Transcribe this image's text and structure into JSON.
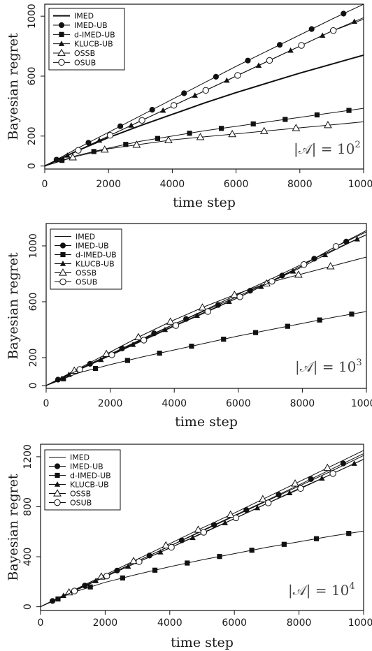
{
  "chart_data": [
    {
      "type": "line",
      "xlabel": "time step",
      "ylabel": "Bayesian regret",
      "xlim": [
        0,
        10000
      ],
      "ylim": [
        -20,
        1080
      ],
      "xticks": [
        "0",
        "2000",
        "4000",
        "6000",
        "8000",
        "10000"
      ],
      "yticks": [
        "0",
        "200",
        "600",
        "1000"
      ],
      "ytick_values": [
        0,
        200,
        600,
        1000
      ],
      "annotation": "|𝒜| = 10",
      "annotation_exp": "2",
      "legend_position": "top-left",
      "x": [
        0,
        1000,
        2000,
        3000,
        4000,
        5000,
        6000,
        7000,
        8000,
        9000,
        10000
      ],
      "series": [
        {
          "name": "IMED",
          "marker": "none",
          "lw": 2,
          "values": [
            0,
            100,
            190,
            270,
            345,
            420,
            490,
            555,
            620,
            680,
            740
          ]
        },
        {
          "name": "IMED-UB",
          "marker": "filled-circle",
          "lw": 1,
          "values": [
            0,
            115,
            225,
            335,
            445,
            555,
            665,
            770,
            875,
            980,
            1080
          ]
        },
        {
          "name": "d-IMED-UB",
          "marker": "filled-square",
          "lw": 1,
          "values": [
            0,
            70,
            120,
            165,
            200,
            235,
            265,
            295,
            325,
            355,
            385
          ]
        },
        {
          "name": "KLUCB-UB",
          "marker": "filled-triangle",
          "lw": 1,
          "values": [
            0,
            100,
            200,
            300,
            400,
            500,
            600,
            700,
            800,
            900,
            990
          ]
        },
        {
          "name": "OSSB",
          "marker": "open-triangle",
          "lw": 1,
          "values": [
            0,
            65,
            115,
            145,
            175,
            195,
            215,
            235,
            255,
            275,
            295
          ]
        },
        {
          "name": "OSUB",
          "marker": "open-circle",
          "lw": 1,
          "values": [
            0,
            100,
            200,
            300,
            400,
            500,
            600,
            700,
            800,
            900,
            980
          ]
        }
      ]
    },
    {
      "type": "line",
      "xlabel": "time step",
      "ylabel": "Bayesian regret",
      "xlim": [
        0,
        10000
      ],
      "ylim": [
        -20,
        1160
      ],
      "xticks": [
        "0",
        "2000",
        "4000",
        "6000",
        "8000",
        "10000"
      ],
      "yticks": [
        "0",
        "200",
        "600",
        "1000"
      ],
      "ytick_values": [
        0,
        200,
        600,
        1000
      ],
      "annotation": "|𝒜| = 10",
      "annotation_exp": "3",
      "legend_position": "top-left",
      "x": [
        0,
        1000,
        2000,
        3000,
        4000,
        5000,
        6000,
        7000,
        8000,
        9000,
        10000
      ],
      "series": [
        {
          "name": "IMED",
          "marker": "none",
          "lw": 1,
          "values": [
            0,
            110,
            220,
            330,
            440,
            545,
            655,
            760,
            870,
            975,
            1080
          ]
        },
        {
          "name": "IMED-UB",
          "marker": "filled-circle",
          "lw": 1,
          "values": [
            0,
            115,
            225,
            335,
            440,
            540,
            640,
            745,
            860,
            990,
            1100
          ]
        },
        {
          "name": "d-IMED-UB",
          "marker": "filled-square",
          "lw": 1,
          "values": [
            0,
            90,
            150,
            205,
            255,
            305,
            355,
            400,
            445,
            490,
            530
          ]
        },
        {
          "name": "KLUCB-UB",
          "marker": "filled-triangle",
          "lw": 1,
          "values": [
            0,
            110,
            215,
            325,
            430,
            530,
            630,
            740,
            850,
            970,
            1080
          ]
        },
        {
          "name": "OSSB",
          "marker": "open-triangle",
          "lw": 1,
          "values": [
            0,
            120,
            240,
            360,
            470,
            570,
            660,
            740,
            800,
            860,
            920
          ]
        },
        {
          "name": "OSUB",
          "marker": "open-circle",
          "lw": 1,
          "values": [
            0,
            110,
            215,
            320,
            425,
            525,
            630,
            740,
            860,
            990,
            1110
          ]
        }
      ]
    },
    {
      "type": "line",
      "xlabel": "time step",
      "ylabel": "Bayesian regret",
      "xlim": [
        0,
        10000
      ],
      "ylim": [
        -30,
        1300
      ],
      "xticks": [
        "0",
        "2000",
        "4000",
        "6000",
        "8000",
        "10000"
      ],
      "yticks": [
        "0",
        "400",
        "800",
        "1200"
      ],
      "ytick_values": [
        0,
        400,
        800,
        1200
      ],
      "annotation": "|𝒜| = 10",
      "annotation_exp": "4",
      "legend_position": "top-left",
      "x": [
        0,
        1000,
        2000,
        3000,
        4000,
        5000,
        6000,
        7000,
        8000,
        9000,
        10000
      ],
      "series": [
        {
          "name": "IMED",
          "marker": "none",
          "lw": 1,
          "values": [
            0,
            125,
            245,
            365,
            485,
            605,
            725,
            845,
            965,
            1085,
            1210
          ]
        },
        {
          "name": "IMED-UB",
          "marker": "filled-circle",
          "lw": 1,
          "values": [
            0,
            125,
            245,
            365,
            485,
            610,
            730,
            850,
            975,
            1100,
            1225
          ]
        },
        {
          "name": "d-IMED-UB",
          "marker": "filled-square",
          "lw": 1,
          "values": [
            0,
            115,
            195,
            260,
            320,
            375,
            425,
            475,
            520,
            565,
            605
          ]
        },
        {
          "name": "KLUCB-UB",
          "marker": "filled-triangle",
          "lw": 1,
          "values": [
            0,
            125,
            240,
            355,
            470,
            585,
            705,
            825,
            945,
            1060,
            1180
          ]
        },
        {
          "name": "OSSB",
          "marker": "open-triangle",
          "lw": 1,
          "values": [
            0,
            130,
            255,
            380,
            505,
            630,
            750,
            875,
            1000,
            1125,
            1250
          ]
        },
        {
          "name": "OSUB",
          "marker": "open-circle",
          "lw": 1,
          "values": [
            0,
            120,
            240,
            355,
            470,
            590,
            705,
            825,
            940,
            1060,
            1180
          ]
        }
      ]
    }
  ]
}
